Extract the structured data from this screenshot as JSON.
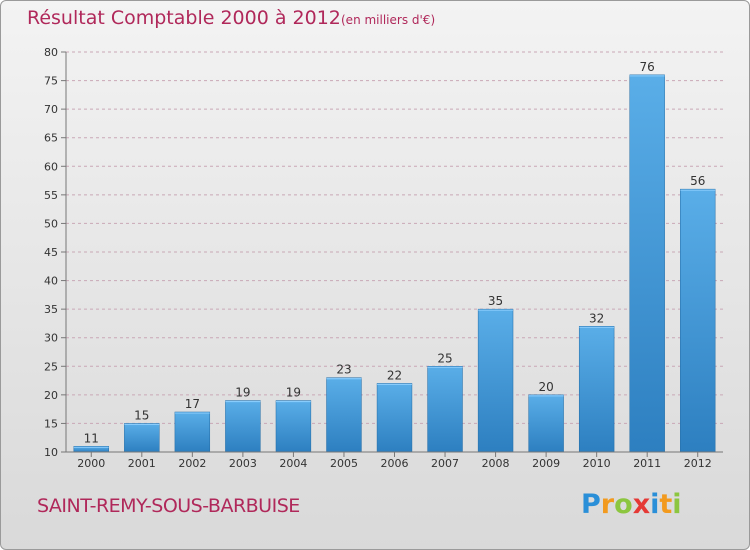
{
  "header": {
    "title": "Résultat Comptable 2000 à 2012",
    "subtitle": "(en milliers d'€)"
  },
  "footer": {
    "commune": "SAINT-REMY-SOUS-BARBUISE",
    "logo": {
      "text": "Proxiti",
      "letters": [
        {
          "char": "P",
          "color": "#2a8fd8"
        },
        {
          "char": "r",
          "color": "#f29a1e"
        },
        {
          "char": "o",
          "color": "#8cc63f"
        },
        {
          "char": "x",
          "color": "#e53935"
        },
        {
          "char": "i",
          "color": "#2a8fd8"
        },
        {
          "char": "t",
          "color": "#f29a1e"
        },
        {
          "char": "i",
          "color": "#8cc63f"
        }
      ]
    }
  },
  "colors": {
    "title": "#b0285a",
    "bar_top": "#5aaee8",
    "bar_bottom": "#2d7fc0",
    "grid": "#c9a8b6",
    "axis": "#777777"
  },
  "chart_data": {
    "type": "bar",
    "title": "Résultat Comptable 2000 à 2012",
    "subtitle": "(en milliers d'€)",
    "categories": [
      "2000",
      "2001",
      "2002",
      "2003",
      "2004",
      "2005",
      "2006",
      "2007",
      "2008",
      "2009",
      "2010",
      "2011",
      "2012"
    ],
    "values": [
      11,
      15,
      17,
      19,
      19,
      23,
      22,
      25,
      35,
      20,
      32,
      76,
      56
    ],
    "ylim": [
      10,
      80
    ],
    "yticks": [
      10,
      15,
      20,
      25,
      30,
      35,
      40,
      45,
      50,
      55,
      60,
      65,
      70,
      75,
      80
    ],
    "grid": "horizontal dashed",
    "data_labels": true
  }
}
